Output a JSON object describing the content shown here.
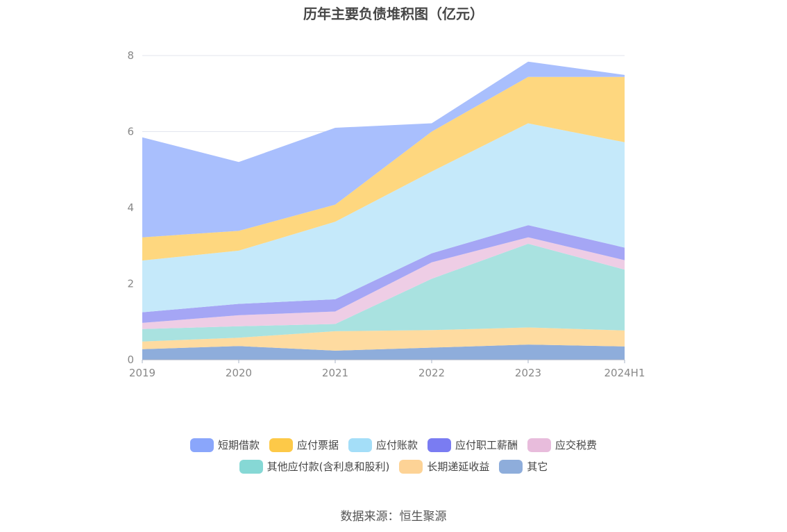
{
  "chart_data": {
    "type": "area",
    "stacked": true,
    "title": "历年主要负债堆积图（亿元）",
    "source": "数据来源：恒生聚源",
    "x": [
      "2019",
      "2020",
      "2021",
      "2022",
      "2023",
      "2024H1"
    ],
    "ylim": [
      0,
      8
    ],
    "yticks": [
      "0",
      "2",
      "4",
      "6",
      "8"
    ],
    "grid": true,
    "legend_position": "bottom",
    "series": [
      {
        "name": "其它",
        "color": "#8eaddb",
        "values": [
          0.28,
          0.36,
          0.24,
          0.32,
          0.4,
          0.35
        ]
      },
      {
        "name": "长期递延收益",
        "color": "#fedba0",
        "values": [
          0.2,
          0.22,
          0.51,
          0.46,
          0.45,
          0.42
        ]
      },
      {
        "name": "其他应付款(含利息和股利)",
        "color": "#a9e2e0",
        "values": [
          0.33,
          0.3,
          0.19,
          1.35,
          2.2,
          1.6
        ]
      },
      {
        "name": "应交税费",
        "color": "#eecde5",
        "values": [
          0.16,
          0.29,
          0.33,
          0.43,
          0.17,
          0.25
        ]
      },
      {
        "name": "应付职工薪酬",
        "color": "#a5a6f5",
        "values": [
          0.28,
          0.3,
          0.32,
          0.24,
          0.32,
          0.33
        ]
      },
      {
        "name": "应付账款",
        "color": "#c5e9fa",
        "values": [
          1.36,
          1.4,
          2.04,
          2.15,
          2.68,
          2.77
        ]
      },
      {
        "name": "应付票据",
        "color": "#fed77f",
        "values": [
          0.61,
          0.52,
          0.45,
          1.05,
          1.22,
          1.72
        ]
      },
      {
        "name": "短期借款",
        "color": "#a9bffd",
        "values": [
          2.63,
          1.81,
          2.02,
          0.22,
          0.4,
          0.05
        ]
      }
    ]
  },
  "legend": {
    "rows": [
      [
        {
          "label": "短期借款",
          "color": "#8aa6fb"
        },
        {
          "label": "应付票据",
          "color": "#fdc948"
        },
        {
          "label": "应付账款",
          "color": "#a4def8"
        },
        {
          "label": "应付职工薪酬",
          "color": "#7a7cf2"
        },
        {
          "label": "应交税费",
          "color": "#e8bcdc"
        }
      ],
      [
        {
          "label": "其他应付款(含利息和股利)",
          "color": "#86d8d5"
        },
        {
          "label": "长期递延收益",
          "color": "#fdd396"
        },
        {
          "label": "其它",
          "color": "#8eaddb"
        }
      ]
    ]
  }
}
